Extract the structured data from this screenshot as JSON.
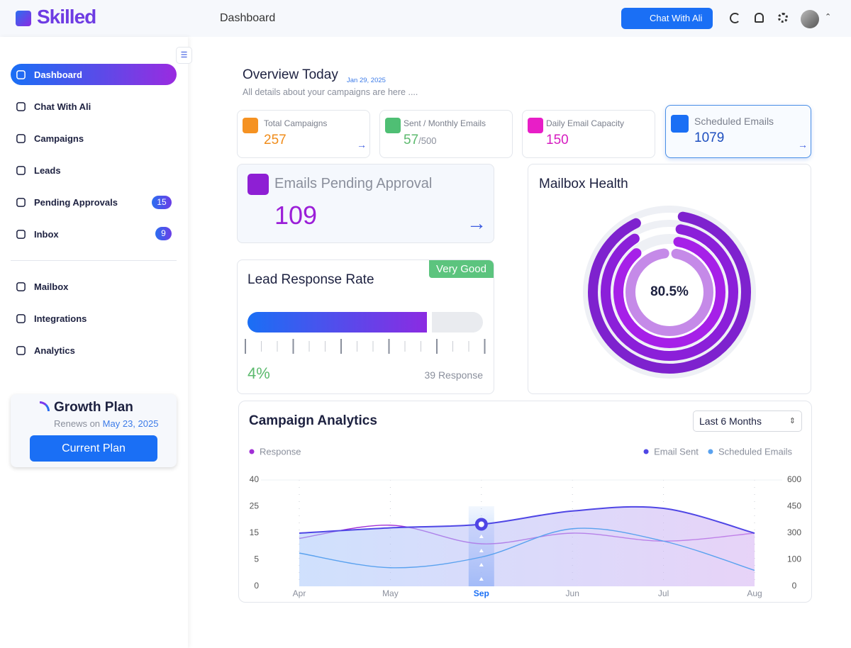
{
  "header": {
    "logo": "Skilled",
    "page_title": "Dashboard",
    "chat_button": "Chat With Ali"
  },
  "sidebar": {
    "nav": [
      {
        "label": "Dashboard"
      },
      {
        "label": "Chat With Ali"
      },
      {
        "label": "Campaigns"
      },
      {
        "label": "Leads"
      },
      {
        "label": "Pending Approvals",
        "badge": 15
      },
      {
        "label": "Inbox",
        "badge": 9
      }
    ],
    "nav_secondary": [
      {
        "label": "Mailbox"
      },
      {
        "label": "Integrations"
      },
      {
        "label": "Analytics"
      }
    ],
    "plan": {
      "title": "Growth Plan",
      "renews_label": "Renews on",
      "renews_date": "May 23, 2025",
      "button": "Current Plan"
    }
  },
  "overview": {
    "title": "Overview Today",
    "date": "Jan 29, 2025",
    "subtitle": "All details about your campaigns are here ...."
  },
  "stats": [
    {
      "label": "Total Campaigns",
      "value": 257
    },
    {
      "label": "Sent / Monthly Emails",
      "value": 57,
      "total": "/500"
    },
    {
      "label": "Daily Email Capacity",
      "value": 150
    },
    {
      "label": "Scheduled Emails",
      "value": 1079
    }
  ],
  "pending": {
    "label": "Emails Pending Approval",
    "value": 109
  },
  "lead_response": {
    "title": "Lead Response Rate",
    "badge": "Very Good",
    "rate": "4%",
    "responses": "39 Response"
  },
  "mailbox_health": {
    "title": "Mailbox Health",
    "score": "80.5%"
  },
  "chart_data": {
    "type": "line",
    "title": "Campaign Analytics",
    "period_select": "Last 6 Months",
    "categories": [
      "Apr",
      "May",
      "Sep",
      "Jun",
      "Jul",
      "Aug"
    ],
    "selected_index": 2,
    "ylim": [
      0,
      40
    ],
    "yticks": [
      0,
      5,
      15,
      25,
      40
    ],
    "y2lim": [
      0,
      600
    ],
    "y2ticks": [
      0,
      100,
      300,
      450,
      600
    ],
    "series": [
      {
        "name": "Response",
        "color": "#a12fd6",
        "values": [
          13,
          18,
          11,
          15,
          12,
          15
        ]
      },
      {
        "name": "Email Sent",
        "color": "#4f46e5",
        "axis": "y2",
        "values": [
          300,
          330,
          350,
          425,
          440,
          300
        ]
      },
      {
        "name": "Scheduled Emails",
        "color": "#5aa2ef",
        "axis": "y2",
        "values": [
          150,
          70,
          120,
          325,
          240,
          60
        ]
      }
    ]
  }
}
